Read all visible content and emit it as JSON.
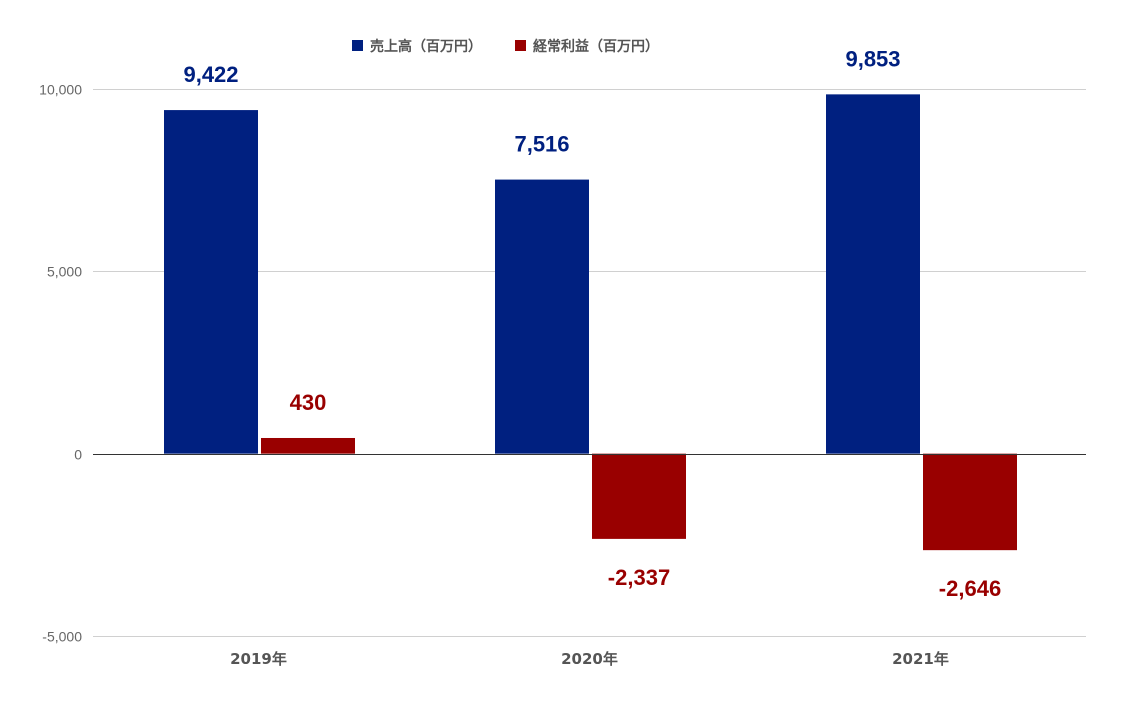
{
  "chart_data": {
    "type": "bar",
    "categories": [
      "2019年",
      "2020年",
      "2021年"
    ],
    "series": [
      {
        "name": "売上高（百万円）",
        "values": [
          9422,
          7516,
          9853
        ],
        "color": "#002080",
        "labels": [
          "9,422",
          "7,516",
          "9,853"
        ]
      },
      {
        "name": "経常利益（百万円）",
        "values": [
          430,
          -2337,
          -2646
        ],
        "color": "#990000",
        "labels": [
          "430",
          "-2,337",
          "-2,646"
        ]
      }
    ],
    "ylim": [
      -5000,
      10000
    ],
    "yticks": [
      10000,
      5000,
      0,
      -5000
    ],
    "ytick_labels": [
      "10,000",
      "5,000",
      "0",
      "-5,000"
    ],
    "legend": "top-center",
    "grid": true
  }
}
